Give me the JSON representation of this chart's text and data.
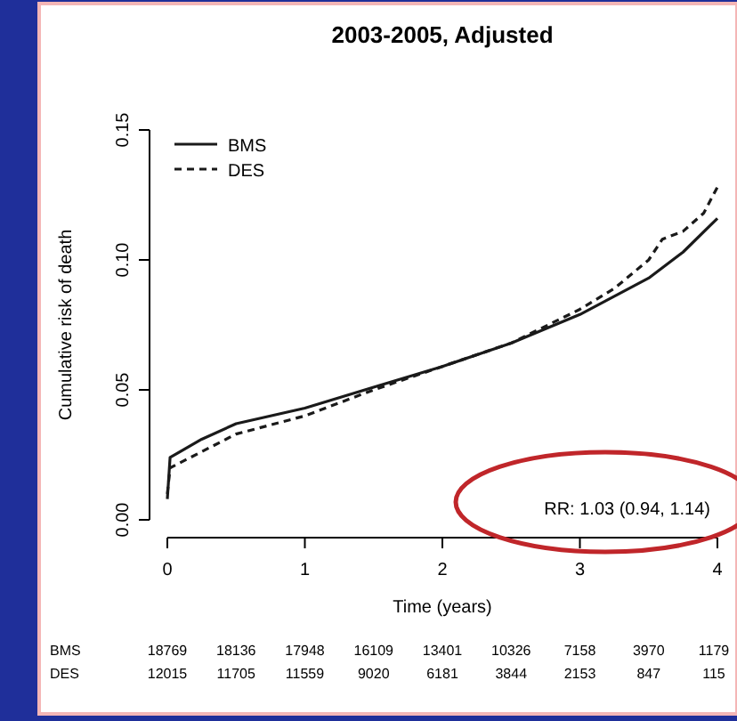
{
  "chart_data": {
    "type": "line",
    "title": "2003-2005, Adjusted",
    "xlabel": "Time (years)",
    "ylabel": "Cumulative risk of death",
    "xlim": [
      0,
      4
    ],
    "ylim": [
      0,
      0.15
    ],
    "xticks": [
      0,
      1,
      2,
      3,
      4
    ],
    "yticks": [
      {
        "value": 0,
        "label": "0.00"
      },
      {
        "value": 0.05,
        "label": "0.05"
      },
      {
        "value": 0.1,
        "label": "0.10"
      },
      {
        "value": 0.15,
        "label": "0.15"
      }
    ],
    "legend": "top left",
    "grid": false,
    "series": [
      {
        "name": "BMS",
        "color": "#1a1a1a",
        "line_style": "solid",
        "x": [
          0,
          0.02,
          0.25,
          0.5,
          1,
          1.5,
          2,
          2.5,
          3,
          3.25,
          3.5,
          3.75,
          4
        ],
        "values": [
          0.008,
          0.024,
          0.031,
          0.037,
          0.043,
          0.051,
          0.059,
          0.068,
          0.079,
          0.086,
          0.093,
          0.103,
          0.116
        ]
      },
      {
        "name": "DES",
        "color": "#1a1a1a",
        "line_style": "dashed",
        "x": [
          0,
          0.02,
          0.5,
          1,
          1.5,
          2,
          2.5,
          3,
          3.25,
          3.5,
          3.6,
          3.75,
          3.9,
          4
        ],
        "values": [
          0.01,
          0.02,
          0.033,
          0.04,
          0.05,
          0.059,
          0.068,
          0.081,
          0.089,
          0.1,
          0.108,
          0.111,
          0.118,
          0.128
        ]
      }
    ],
    "annotations": [
      "RR: 1.03 (0.94, 1.14)",
      "BMS 18769 18136 17948 16109 13401 10326 7158 3970 1179",
      "DES 12015 11705 11559 9020 6181 3844 2153 847 115"
    ]
  }
}
